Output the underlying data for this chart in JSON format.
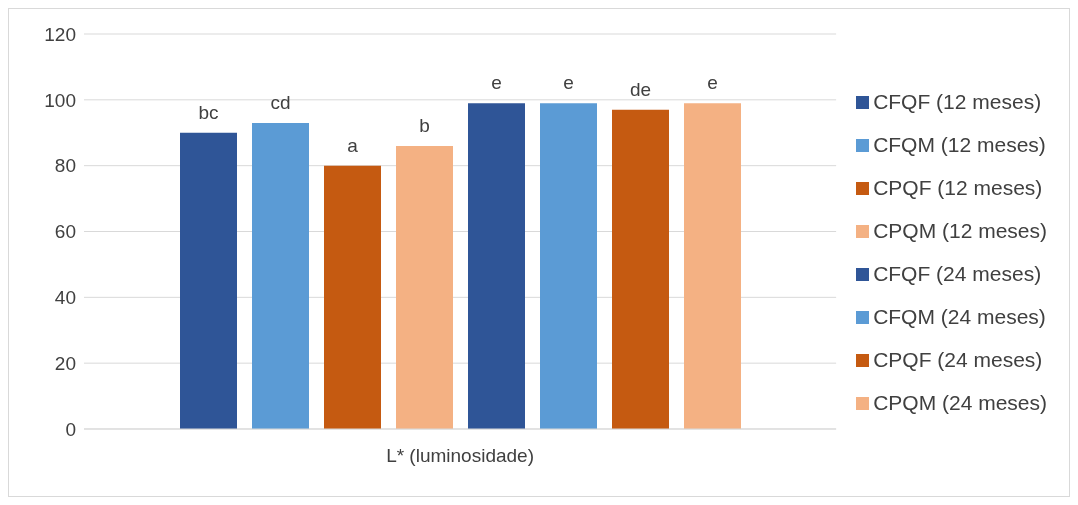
{
  "chart_data": {
    "type": "bar",
    "categories": [
      "L* (luminosidade)"
    ],
    "series": [
      {
        "name": "CFQF (12 meses)",
        "color": "#2f5597",
        "values": [
          90
        ],
        "value_labels": [
          "bc"
        ]
      },
      {
        "name": "CFQM (12 meses)",
        "color": "#5b9bd5",
        "values": [
          93
        ],
        "value_labels": [
          "cd"
        ]
      },
      {
        "name": "CPQF (12 meses)",
        "color": "#c55a11",
        "values": [
          80
        ],
        "value_labels": [
          "a"
        ]
      },
      {
        "name": "CPQM (12 meses)",
        "color": "#f4b183",
        "values": [
          86
        ],
        "value_labels": [
          "b"
        ]
      },
      {
        "name": "CFQF (24 meses)",
        "color": "#2f5597",
        "values": [
          99
        ],
        "value_labels": [
          "e"
        ]
      },
      {
        "name": "CFQM (24 meses)",
        "color": "#5b9bd5",
        "values": [
          99
        ],
        "value_labels": [
          "e"
        ]
      },
      {
        "name": "CPQF (24 meses)",
        "color": "#c55a11",
        "values": [
          97
        ],
        "value_labels": [
          "de"
        ]
      },
      {
        "name": "CPQM (24 meses)",
        "color": "#f4b183",
        "values": [
          99
        ],
        "value_labels": [
          "e"
        ]
      }
    ],
    "ylim": [
      0,
      120
    ],
    "yticks": [
      0,
      20,
      40,
      60,
      80,
      100,
      120
    ],
    "grid": "y",
    "legend": "right"
  }
}
